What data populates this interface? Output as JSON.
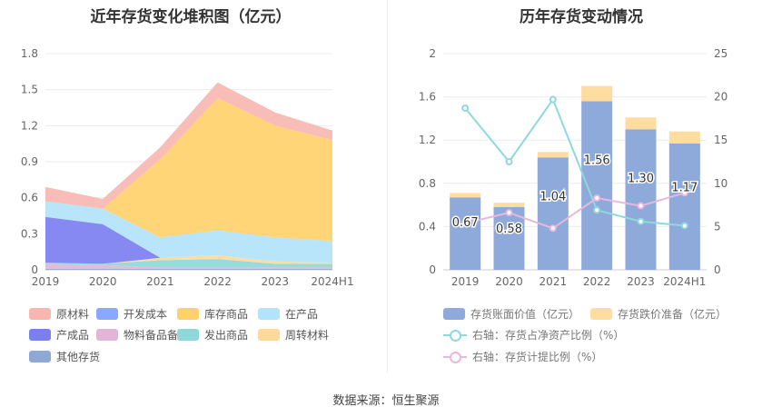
{
  "left_title": "近年存货变化堆积图（亿元）",
  "right_title": "历年存货变动情况",
  "source_text": "数据来源：恒生聚源",
  "chart_data": [
    {
      "type": "area",
      "title": "近年存货变化堆积图（亿元）",
      "categories": [
        "2019",
        "2020",
        "2021",
        "2022",
        "2023",
        "2024H1"
      ],
      "ylim": [
        0,
        1.8
      ],
      "yticks": [
        "0",
        "0.3",
        "0.6",
        "0.9",
        "1.2",
        "1.5",
        "1.8"
      ],
      "grid": true,
      "series": [
        {
          "name": "其他存货",
          "color": "#8fa9d6",
          "values": [
            0.01,
            0.01,
            0.01,
            0.01,
            0.01,
            0.01
          ]
        },
        {
          "name": "物料备品备件",
          "color": "#e3b5d6",
          "values": [
            0.04,
            0.03,
            0.01,
            0.01,
            0.01,
            0.01
          ]
        },
        {
          "name": "发出商品",
          "color": "#8ed8d8",
          "values": [
            0.01,
            0.01,
            0.06,
            0.07,
            0.03,
            0.03
          ]
        },
        {
          "name": "周转材料",
          "color": "#ffd99a",
          "values": [
            0.0,
            0.0,
            0.02,
            0.03,
            0.02,
            0.01
          ]
        },
        {
          "name": "产成品",
          "color": "#7b7ff0",
          "values": [
            0.38,
            0.33,
            0.0,
            0.0,
            0.0,
            0.0
          ]
        },
        {
          "name": "开发成本",
          "color": "#8aa8ff",
          "values": [
            0.0,
            0.0,
            0.0,
            0.0,
            0.0,
            0.0
          ]
        },
        {
          "name": "在产品",
          "color": "#b3e3fa",
          "values": [
            0.13,
            0.13,
            0.17,
            0.21,
            0.2,
            0.18
          ]
        },
        {
          "name": "库存商品",
          "color": "#ffd16b",
          "values": [
            0.0,
            0.0,
            0.65,
            1.1,
            0.93,
            0.84
          ]
        },
        {
          "name": "原材料",
          "color": "#f7b7b0",
          "values": [
            0.12,
            0.08,
            0.1,
            0.13,
            0.11,
            0.08
          ]
        }
      ],
      "legend_order": [
        "原材料",
        "开发成本",
        "库存商品",
        "在产品",
        "产成品",
        "物料备品备件",
        "发出商品",
        "周转材料",
        "其他存货"
      ]
    },
    {
      "type": "bar",
      "title": "历年存货变动情况",
      "categories": [
        "2019",
        "2020",
        "2021",
        "2022",
        "2023",
        "2024H1"
      ],
      "ylim": [
        0,
        2
      ],
      "yticks": [
        "0",
        "0.4",
        "0.8",
        "1.2",
        "1.6",
        "2"
      ],
      "y2lim": [
        0,
        25
      ],
      "y2ticks": [
        "0",
        "5",
        "10",
        "15",
        "20",
        "25"
      ],
      "grid": true,
      "bars": [
        {
          "name": "存货账面价值（亿元）",
          "color": "#8eaadb",
          "values": [
            0.67,
            0.58,
            1.04,
            1.56,
            1.3,
            1.17
          ],
          "labels": [
            "0.67",
            "0.58",
            "1.04",
            "1.56",
            "1.30",
            "1.17"
          ]
        },
        {
          "name": "存货跌价准备（亿元）",
          "color": "#ffdca0",
          "values": [
            0.04,
            0.04,
            0.05,
            0.14,
            0.11,
            0.11
          ]
        }
      ],
      "lines": [
        {
          "name": "右轴：存货占净资产比例（%）",
          "color": "#8ed8de",
          "values": [
            18.7,
            12.5,
            19.7,
            6.9,
            5.6,
            5.1
          ]
        },
        {
          "name": "右轴：存货计提比例（%）",
          "color": "#e8b8dc",
          "values": [
            5.4,
            6.6,
            4.8,
            8.3,
            7.4,
            8.9
          ]
        }
      ]
    }
  ]
}
